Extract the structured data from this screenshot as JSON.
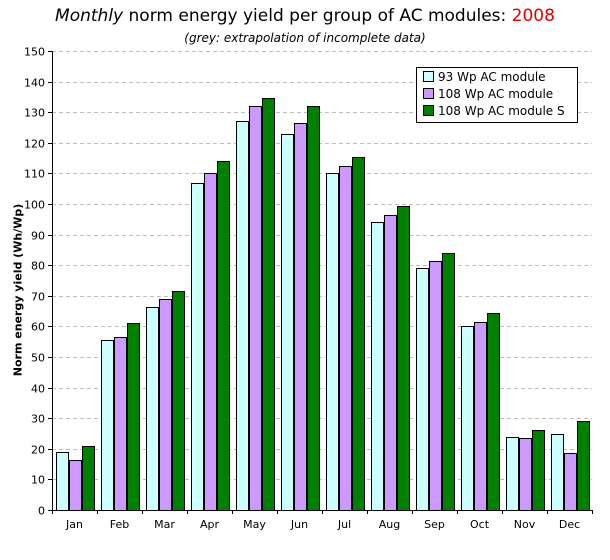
{
  "chart_data": {
    "type": "bar",
    "title_parts": {
      "italic": "Monthly",
      "main": " norm energy yield per group of AC modules: ",
      "year": "2008"
    },
    "subtitle": "(grey: extrapolation of incomplete data)",
    "ylabel": "Norm energy yield (Wh/Wp)",
    "ylim": [
      0,
      150
    ],
    "yticks": [
      0,
      10,
      20,
      30,
      40,
      50,
      60,
      70,
      80,
      90,
      100,
      110,
      120,
      130,
      140,
      150
    ],
    "grid": true,
    "legend_position": "top-right",
    "categories": [
      "Jan",
      "Feb",
      "Mar",
      "Apr",
      "May",
      "Jun",
      "Jul",
      "Aug",
      "Sep",
      "Oct",
      "Nov",
      "Dec"
    ],
    "series": [
      {
        "name": "93 Wp AC module",
        "color": "#ccffff",
        "values": [
          19,
          55.5,
          66.5,
          107,
          127,
          123,
          110,
          94,
          79,
          60,
          24,
          25
        ]
      },
      {
        "name": "108 Wp AC module",
        "color": "#cc99ff",
        "values": [
          16.5,
          56.5,
          69,
          110,
          132,
          126.5,
          112.5,
          96.5,
          81.5,
          61.5,
          23.5,
          18.5
        ]
      },
      {
        "name": "108 Wp AC module S",
        "color": "#008000",
        "values": [
          21,
          61,
          71.5,
          114,
          134.5,
          132,
          115.5,
          99.5,
          84,
          64.5,
          26,
          29
        ]
      }
    ]
  }
}
